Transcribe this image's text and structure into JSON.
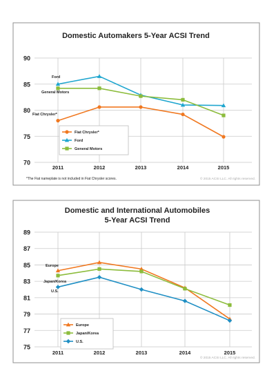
{
  "colors": {
    "panel_bg": "#ffffff",
    "panel_border": "#8f8f8f",
    "grid": "#c9c9c9",
    "text": "#222222",
    "copyright": "#aaaaaa",
    "orange": "#f07820",
    "cyan": "#1fa6cf",
    "green": "#8cbc3c",
    "blue": "#1f8fc4"
  },
  "chart_data": [
    {
      "type": "line",
      "title": "Domestic Automakers 5-Year ACSI Trend",
      "categories": [
        "2011",
        "2012",
        "2013",
        "2014",
        "2015"
      ],
      "ylim": [
        70,
        90
      ],
      "yticks": [
        70,
        75,
        80,
        85,
        90
      ],
      "grid": true,
      "legend_position": "bottom-left",
      "series": [
        {
          "name": "Fiat Chrysler*",
          "label": "Fiat Chrysler*",
          "color": "#f07820",
          "marker": "circle",
          "values": [
            78,
            80.6,
            80.6,
            79.2,
            74.9
          ]
        },
        {
          "name": "Ford",
          "label": "Ford",
          "color": "#1fa6cf",
          "marker": "triangle",
          "values": [
            85,
            86.5,
            82.9,
            81,
            80.9
          ]
        },
        {
          "name": "General Motors",
          "label": "General Motors",
          "color": "#8cbc3c",
          "marker": "square",
          "values": [
            84.2,
            84.2,
            82.7,
            82,
            79
          ]
        }
      ],
      "footnote": "*The Fiat nameplate is not included in Fiat Chrysler scores.",
      "copyright": "© 2015 ACSI LLC. All rights reserved."
    },
    {
      "type": "line",
      "title": "Domestic and International Automobiles",
      "subtitle": "5-Year ACSI Trend",
      "categories": [
        "2011",
        "2012",
        "2013",
        "2014",
        "2015"
      ],
      "ylim": [
        75,
        89
      ],
      "yticks": [
        75,
        77,
        79,
        81,
        83,
        85,
        87,
        89
      ],
      "grid": true,
      "legend_position": "bottom-left",
      "series": [
        {
          "name": "Europe",
          "label": "Europe",
          "color": "#f07820",
          "marker": "triangle",
          "values": [
            84.3,
            85.3,
            84.5,
            82.2,
            78.4
          ]
        },
        {
          "name": "Japan/Korea",
          "label": "Japan/Korea",
          "color": "#8cbc3c",
          "marker": "square",
          "values": [
            83.7,
            84.5,
            84.2,
            82.1,
            80.1
          ]
        },
        {
          "name": "U.S.",
          "label": "U.S.",
          "color": "#1f8fc4",
          "marker": "diamond",
          "values": [
            82.3,
            83.5,
            82,
            80.6,
            78.2
          ]
        }
      ],
      "copyright": "© 2015 ACSI LLC. All rights reserved."
    }
  ]
}
